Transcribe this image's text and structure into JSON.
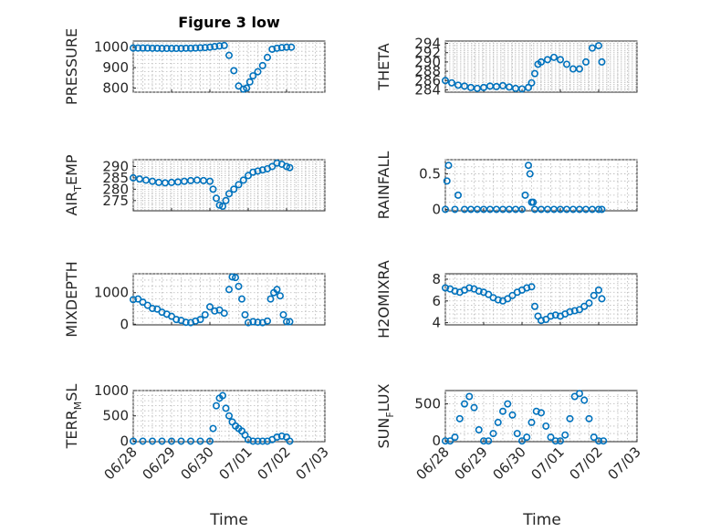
{
  "title": "Figure 3 low",
  "marker_color": "#0072BD",
  "x_label": "Time",
  "date_ticks": [
    "06/28",
    "06/29",
    "06/30",
    "07/01",
    "07/02",
    "07/03"
  ],
  "chart_data": [
    {
      "type": "scatter",
      "id": "pressure",
      "ylabel": "PRESSURE",
      "ylim": [
        780,
        1030
      ],
      "yticks": [
        800,
        900,
        1000
      ],
      "ytick_labels": [
        "800",
        "900",
        "1000"
      ],
      "xlim": [
        "06/28",
        "07/03"
      ],
      "grid": true,
      "show_date_labels": false,
      "x": [
        "06/28 00:00",
        "06/28 03:00",
        "06/28 06:00",
        "06/28 09:00",
        "06/28 12:00",
        "06/28 15:00",
        "06/28 18:00",
        "06/28 21:00",
        "06/29 00:00",
        "06/29 03:00",
        "06/29 06:00",
        "06/29 09:00",
        "06/29 12:00",
        "06/29 15:00",
        "06/29 18:00",
        "06/29 21:00",
        "06/30 00:00",
        "06/30 03:00",
        "06/30 06:00",
        "06/30 09:00",
        "06/30 12:00",
        "06/30 15:00",
        "06/30 18:00",
        "06/30 21:00",
        "06/30 23:00",
        "07/01 01:00",
        "07/01 03:00",
        "07/01 06:00",
        "07/01 09:00",
        "07/01 12:00",
        "07/01 15:00",
        "07/01 18:00",
        "07/01 21:00",
        "07/02 00:00",
        "07/02 03:00"
      ],
      "y": [
        996,
        996,
        996,
        996,
        995,
        995,
        994,
        994,
        994,
        994,
        994,
        995,
        995,
        996,
        997,
        998,
        1000,
        1003,
        1006,
        1008,
        960,
        885,
        810,
        795,
        800,
        830,
        860,
        880,
        910,
        950,
        990,
        995,
        998,
        1000,
        1000
      ]
    },
    {
      "type": "scatter",
      "id": "theta",
      "ylabel": "THETA",
      "ylim": [
        283.5,
        294.5
      ],
      "yticks": [
        284,
        286,
        288,
        290,
        292,
        294
      ],
      "ytick_labels": [
        "284",
        "286",
        "288",
        "290",
        "292",
        "294"
      ],
      "xlim": [
        "06/28",
        "07/03"
      ],
      "grid": true,
      "show_date_labels": false,
      "x": [
        "06/28 00:00",
        "06/28 04:00",
        "06/28 08:00",
        "06/28 12:00",
        "06/28 16:00",
        "06/28 20:00",
        "06/29 00:00",
        "06/29 04:00",
        "06/29 08:00",
        "06/29 12:00",
        "06/29 16:00",
        "06/29 20:00",
        "06/30 00:00",
        "06/30 04:00",
        "06/30 06:00",
        "06/30 08:00",
        "06/30 10:00",
        "06/30 12:00",
        "06/30 16:00",
        "06/30 20:00",
        "07/01 00:00",
        "07/01 04:00",
        "07/01 08:00",
        "07/01 12:00",
        "07/01 16:00",
        "07/01 20:00",
        "07/02 00:00",
        "07/02 02:00"
      ],
      "y": [
        286,
        285.5,
        285,
        284.8,
        284.5,
        284.3,
        284.5,
        284.8,
        284.7,
        284.9,
        284.6,
        284.3,
        284.2,
        284.5,
        285.5,
        287.5,
        289.5,
        290,
        290.5,
        291,
        290.5,
        289.5,
        288.5,
        288.5,
        290,
        293,
        293.5,
        290
      ]
    },
    {
      "type": "scatter",
      "id": "air_temp",
      "ylabel": "AIR_TEMP",
      "ylim": [
        270.5,
        293
      ],
      "yticks": [
        275,
        280,
        285,
        290
      ],
      "ytick_labels": [
        "275",
        "280",
        "285",
        "290"
      ],
      "xlim": [
        "06/28",
        "07/03"
      ],
      "grid": true,
      "show_date_labels": false,
      "x": [
        "06/28 00:00",
        "06/28 04:00",
        "06/28 08:00",
        "06/28 12:00",
        "06/28 16:00",
        "06/28 20:00",
        "06/29 00:00",
        "06/29 04:00",
        "06/29 08:00",
        "06/29 12:00",
        "06/29 16:00",
        "06/29 20:00",
        "06/30 00:00",
        "06/30 02:00",
        "06/30 04:00",
        "06/30 06:00",
        "06/30 08:00",
        "06/30 10:00",
        "06/30 12:00",
        "06/30 15:00",
        "06/30 18:00",
        "06/30 21:00",
        "07/01 00:00",
        "07/01 03:00",
        "07/01 06:00",
        "07/01 09:00",
        "07/01 12:00",
        "07/01 15:00",
        "07/01 18:00",
        "07/01 21:00",
        "07/02 00:00",
        "07/02 02:00"
      ],
      "y": [
        285,
        284.5,
        284,
        283.5,
        283,
        282.8,
        283,
        283.2,
        283.5,
        283.8,
        284,
        283.8,
        283.5,
        280,
        276,
        273,
        272.5,
        275,
        278,
        280,
        282,
        284,
        286,
        287.5,
        288,
        288.5,
        289,
        290,
        291.5,
        291,
        290,
        289.5
      ]
    },
    {
      "type": "scatter",
      "id": "rainfall",
      "ylabel": "RAINFALL",
      "ylim": [
        -0.02,
        0.7
      ],
      "yticks": [
        0,
        0.5
      ],
      "ytick_labels": [
        "0",
        "0.5"
      ],
      "xlim": [
        "06/28",
        "07/03"
      ],
      "grid": true,
      "show_date_labels": false,
      "x": [
        "06/28 00:00",
        "06/28 01:00",
        "06/28 02:00",
        "06/28 06:00",
        "06/28 08:00",
        "06/28 12:00",
        "06/28 16:00",
        "06/28 20:00",
        "06/29 00:00",
        "06/29 04:00",
        "06/29 08:00",
        "06/29 12:00",
        "06/29 16:00",
        "06/29 20:00",
        "06/30 00:00",
        "06/30 02:00",
        "06/30 04:00",
        "06/30 05:00",
        "06/30 06:00",
        "06/30 07:00",
        "06/30 08:00",
        "06/30 12:00",
        "06/30 16:00",
        "06/30 20:00",
        "07/01 00:00",
        "07/01 04:00",
        "07/01 08:00",
        "07/01 12:00",
        "07/01 16:00",
        "07/01 20:00",
        "07/02 00:00",
        "07/02 02:00"
      ],
      "y": [
        0,
        0.4,
        0.62,
        0,
        0.2,
        0,
        0,
        0,
        0,
        0,
        0,
        0,
        0,
        0,
        0,
        0.2,
        0.62,
        0.5,
        0.1,
        0.1,
        0,
        0,
        0,
        0,
        0,
        0,
        0,
        0,
        0,
        0,
        0,
        0
      ]
    },
    {
      "type": "scatter",
      "id": "mixdepth",
      "ylabel": "MIXDEPTH",
      "ylim": [
        -20,
        1600
      ],
      "yticks": [
        0,
        1000
      ],
      "ytick_labels": [
        "0",
        "1000"
      ],
      "xlim": [
        "06/28",
        "07/03"
      ],
      "grid": true,
      "show_date_labels": false,
      "x": [
        "06/28 00:00",
        "06/28 03:00",
        "06/28 06:00",
        "06/28 09:00",
        "06/28 12:00",
        "06/28 15:00",
        "06/28 18:00",
        "06/28 21:00",
        "06/29 00:00",
        "06/29 03:00",
        "06/29 06:00",
        "06/29 09:00",
        "06/29 12:00",
        "06/29 15:00",
        "06/29 18:00",
        "06/29 21:00",
        "06/30 00:00",
        "06/30 03:00",
        "06/30 06:00",
        "06/30 09:00",
        "06/30 12:00",
        "06/30 14:00",
        "06/30 16:00",
        "06/30 18:00",
        "06/30 20:00",
        "06/30 22:00",
        "07/01 00:00",
        "07/01 03:00",
        "07/01 06:00",
        "07/01 09:00",
        "07/01 12:00",
        "07/01 14:00",
        "07/01 16:00",
        "07/01 18:00",
        "07/01 20:00",
        "07/01 22:00",
        "07/02 00:00",
        "07/02 02:00"
      ],
      "y": [
        780,
        800,
        700,
        600,
        500,
        480,
        380,
        320,
        250,
        150,
        120,
        60,
        50,
        100,
        150,
        300,
        550,
        420,
        450,
        350,
        1100,
        1500,
        1480,
        1200,
        800,
        300,
        50,
        80,
        60,
        50,
        100,
        800,
        1000,
        1100,
        900,
        300,
        80,
        80
      ]
    },
    {
      "type": "scatter",
      "id": "h2omixra",
      "ylabel": "H2OMIXRA",
      "ylim": [
        3.8,
        8.5
      ],
      "yticks": [
        4,
        6,
        8
      ],
      "ytick_labels": [
        "4",
        "6",
        "8"
      ],
      "xlim": [
        "06/28",
        "07/03"
      ],
      "grid": true,
      "show_date_labels": false,
      "x": [
        "06/28 00:00",
        "06/28 03:00",
        "06/28 06:00",
        "06/28 09:00",
        "06/28 12:00",
        "06/28 15:00",
        "06/28 18:00",
        "06/28 21:00",
        "06/29 00:00",
        "06/29 03:00",
        "06/29 06:00",
        "06/29 09:00",
        "06/29 12:00",
        "06/29 15:00",
        "06/29 18:00",
        "06/29 21:00",
        "06/30 00:00",
        "06/30 03:00",
        "06/30 06:00",
        "06/30 08:00",
        "06/30 10:00",
        "06/30 12:00",
        "06/30 15:00",
        "06/30 18:00",
        "06/30 21:00",
        "07/01 00:00",
        "07/01 03:00",
        "07/01 06:00",
        "07/01 09:00",
        "07/01 12:00",
        "07/01 15:00",
        "07/01 18:00",
        "07/01 21:00",
        "07/02 00:00",
        "07/02 02:00"
      ],
      "y": [
        7.2,
        7.1,
        6.9,
        6.8,
        7.0,
        7.2,
        7.1,
        6.9,
        6.8,
        6.6,
        6.3,
        6.1,
        6.0,
        6.2,
        6.5,
        6.8,
        7.0,
        7.2,
        7.3,
        5.5,
        4.6,
        4.2,
        4.3,
        4.6,
        4.7,
        4.6,
        4.8,
        5.0,
        5.1,
        5.2,
        5.5,
        5.8,
        6.5,
        7.0,
        6.2
      ]
    },
    {
      "type": "scatter",
      "id": "terr_msl",
      "ylabel": "TERR_MSL",
      "ylim": [
        -10,
        1000
      ],
      "yticks": [
        0,
        500,
        1000
      ],
      "ytick_labels": [
        "0",
        "500",
        "1000"
      ],
      "xlim": [
        "06/28",
        "07/03"
      ],
      "grid": true,
      "show_date_labels": true,
      "x": [
        "06/28 00:00",
        "06/28 06:00",
        "06/28 12:00",
        "06/28 18:00",
        "06/29 00:00",
        "06/29 06:00",
        "06/29 12:00",
        "06/29 18:00",
        "06/30 00:00",
        "06/30 02:00",
        "06/30 04:00",
        "06/30 06:00",
        "06/30 08:00",
        "06/30 10:00",
        "06/30 12:00",
        "06/30 14:00",
        "06/30 16:00",
        "06/30 18:00",
        "06/30 20:00",
        "06/30 22:00",
        "07/01 00:00",
        "07/01 03:00",
        "07/01 06:00",
        "07/01 09:00",
        "07/01 12:00",
        "07/01 15:00",
        "07/01 18:00",
        "07/01 21:00",
        "07/02 00:00",
        "07/02 02:00"
      ],
      "y": [
        0,
        0,
        0,
        0,
        0,
        0,
        0,
        0,
        0,
        250,
        700,
        850,
        900,
        650,
        500,
        380,
        300,
        250,
        200,
        120,
        30,
        0,
        0,
        0,
        0,
        30,
        80,
        100,
        80,
        0
      ]
    },
    {
      "type": "scatter",
      "id": "sun_flux",
      "ylabel": "SUN_FLUX",
      "ylim": [
        -10,
        680
      ],
      "yticks": [
        0,
        500
      ],
      "ytick_labels": [
        "0",
        "500"
      ],
      "xlim": [
        "06/28",
        "07/03"
      ],
      "grid": true,
      "show_date_labels": true,
      "x": [
        "06/28 00:00",
        "06/28 03:00",
        "06/28 06:00",
        "06/28 09:00",
        "06/28 12:00",
        "06/28 15:00",
        "06/28 18:00",
        "06/28 21:00",
        "06/29 00:00",
        "06/29 03:00",
        "06/29 06:00",
        "06/29 09:00",
        "06/29 12:00",
        "06/29 15:00",
        "06/29 18:00",
        "06/29 21:00",
        "06/30 00:00",
        "06/30 03:00",
        "06/30 06:00",
        "06/30 09:00",
        "06/30 12:00",
        "06/30 15:00",
        "06/30 18:00",
        "06/30 21:00",
        "07/01 00:00",
        "07/01 03:00",
        "07/01 06:00",
        "07/01 09:00",
        "07/01 12:00",
        "07/01 15:00",
        "07/01 18:00",
        "07/01 21:00",
        "07/02 00:00",
        "07/02 03:00"
      ],
      "y": [
        0,
        0,
        50,
        300,
        500,
        600,
        450,
        150,
        0,
        0,
        100,
        250,
        400,
        500,
        350,
        100,
        0,
        50,
        250,
        400,
        380,
        200,
        50,
        0,
        0,
        80,
        300,
        600,
        640,
        550,
        300,
        50,
        0,
        0
      ]
    }
  ]
}
